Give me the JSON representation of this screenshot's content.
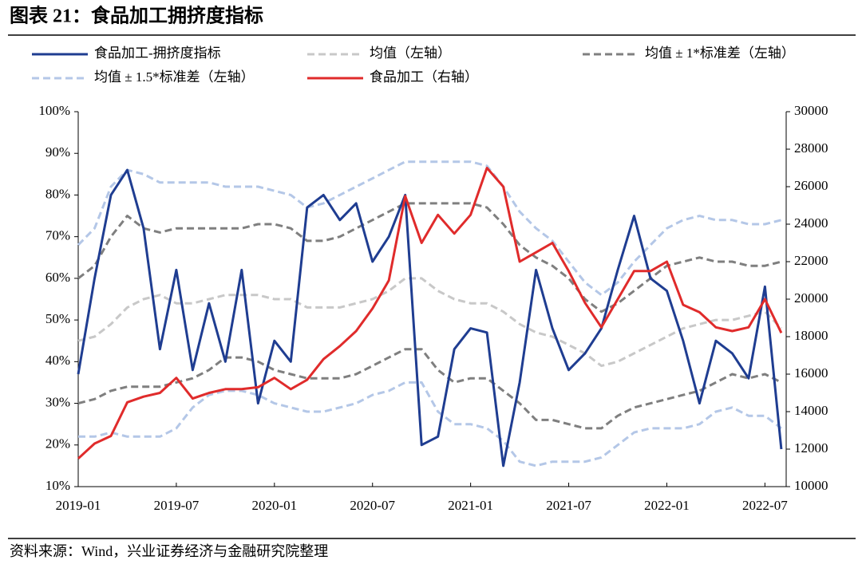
{
  "chart_data": {
    "type": "line",
    "title": "图表 21：食品加工拥挤度指标",
    "source": "资料来源：Wind，兴业证券经济与金融研究院整理",
    "x": [
      0,
      1,
      2,
      3,
      4,
      5,
      6,
      7,
      8,
      9,
      10,
      11,
      12,
      13,
      14,
      15,
      16,
      17,
      18,
      19,
      20,
      21,
      22,
      23,
      24,
      25,
      26,
      27,
      28,
      29,
      30,
      31,
      32,
      33,
      34,
      35,
      36,
      37,
      38,
      39,
      40,
      41,
      42,
      43
    ],
    "xlim": [
      0,
      43.3
    ],
    "xticks": [
      {
        "value": 0,
        "label": "2019-01"
      },
      {
        "value": 6,
        "label": "2019-07"
      },
      {
        "value": 12,
        "label": "2020-01"
      },
      {
        "value": 18,
        "label": "2020-07"
      },
      {
        "value": 24,
        "label": "2021-01"
      },
      {
        "value": 30,
        "label": "2021-07"
      },
      {
        "value": 36,
        "label": "2022-01"
      },
      {
        "value": 42,
        "label": "2022-07"
      }
    ],
    "ylim": [
      10,
      100
    ],
    "yticks": [
      {
        "value": 10,
        "label": "10%"
      },
      {
        "value": 20,
        "label": "20%"
      },
      {
        "value": 30,
        "label": "30%"
      },
      {
        "value": 40,
        "label": "40%"
      },
      {
        "value": 50,
        "label": "50%"
      },
      {
        "value": 60,
        "label": "60%"
      },
      {
        "value": 70,
        "label": "70%"
      },
      {
        "value": 80,
        "label": "80%"
      },
      {
        "value": 90,
        "label": "90%"
      },
      {
        "value": 100,
        "label": "100%"
      }
    ],
    "y2lim": [
      10000,
      30000
    ],
    "y2ticks": [
      10000,
      12000,
      14000,
      16000,
      18000,
      20000,
      22000,
      24000,
      26000,
      28000,
      30000
    ],
    "series": [
      {
        "name": "食品加工-拥挤度指标",
        "color": "#1f3d91",
        "style": "solid",
        "values": [
          37,
          60,
          80,
          86,
          72,
          43,
          62,
          38,
          54,
          40,
          62,
          30,
          45,
          40,
          77,
          80,
          74,
          78,
          64,
          70,
          80,
          20,
          22,
          43,
          48,
          47,
          15,
          35,
          62,
          48,
          38,
          42,
          48,
          62,
          75,
          60,
          57,
          45,
          30,
          45,
          42,
          36,
          58,
          19
        ]
      },
      {
        "name": "均值（左轴）",
        "color": "#c8c8c8",
        "style": "dashed",
        "values": [
          45,
          46,
          49,
          53,
          55,
          56,
          54,
          54,
          55,
          56,
          56,
          56,
          55,
          55,
          53,
          53,
          53,
          54,
          55,
          57,
          60,
          60,
          57,
          55,
          54,
          54,
          52,
          49,
          47,
          46,
          44,
          42,
          39,
          40,
          42,
          44,
          46,
          48,
          49,
          50,
          50,
          51,
          52,
          48
        ]
      },
      {
        "name": "均值 ± 1*标准差（左轴）",
        "color": "#7f7f7f",
        "style": "dashed",
        "values": [
          60,
          63,
          70,
          75,
          72,
          71,
          72,
          72,
          72,
          72,
          72,
          73,
          73,
          72,
          69,
          69,
          70,
          72,
          74,
          76,
          78,
          78,
          78,
          78,
          78,
          77,
          73,
          68,
          65,
          63,
          60,
          55,
          52,
          54,
          57,
          60,
          63,
          64,
          65,
          64,
          64,
          63,
          63,
          64
        ]
      },
      {
        "name": "均值 ± 1*标准差（左轴）",
        "color": "#7f7f7f",
        "style": "dashed",
        "values": [
          30,
          31,
          33,
          34,
          34,
          34,
          35,
          36,
          38,
          41,
          41,
          40,
          38,
          37,
          36,
          36,
          36,
          37,
          39,
          41,
          43,
          43,
          38,
          35,
          36,
          36,
          33,
          30,
          26,
          26,
          25,
          24,
          24,
          27,
          29,
          30,
          31,
          32,
          33,
          35,
          37,
          36,
          37,
          35
        ]
      },
      {
        "name": "均值 ± 1.5*标准差（左轴）",
        "color": "#b4c7e7",
        "style": "dashed",
        "values": [
          68,
          72,
          82,
          86,
          85,
          83,
          83,
          83,
          83,
          82,
          82,
          82,
          81,
          80,
          77,
          78,
          80,
          82,
          84,
          86,
          88,
          88,
          88,
          88,
          88,
          87,
          82,
          76,
          72,
          69,
          64,
          59,
          56,
          59,
          64,
          68,
          72,
          74,
          75,
          74,
          74,
          73,
          73,
          74
        ]
      },
      {
        "name": "均值 ± 1.5*标准差（左轴）",
        "color": "#b4c7e7",
        "style": "dashed",
        "values": [
          22,
          22,
          23,
          22,
          22,
          22,
          24,
          29,
          32,
          33,
          33,
          32,
          30,
          29,
          28,
          28,
          29,
          30,
          32,
          33,
          35,
          35,
          28,
          25,
          25,
          24,
          21,
          16,
          15,
          16,
          16,
          16,
          17,
          20,
          23,
          24,
          24,
          24,
          25,
          28,
          29,
          27,
          27,
          24
        ]
      },
      {
        "name": "食品加工（右轴）",
        "color": "#e02b2b",
        "style": "solid",
        "axis": "y2",
        "values": [
          11500,
          12300,
          12700,
          14500,
          14800,
          15000,
          15800,
          14700,
          15000,
          15200,
          15200,
          15300,
          15800,
          15200,
          15700,
          16800,
          17500,
          18300,
          19500,
          21000,
          25500,
          23000,
          24500,
          23500,
          24500,
          27000,
          26000,
          22000,
          22500,
          23000,
          21500,
          19800,
          18500,
          20000,
          21500,
          21500,
          22000,
          19700,
          19300,
          18500,
          18300,
          18500,
          20000,
          18200
        ]
      }
    ]
  }
}
